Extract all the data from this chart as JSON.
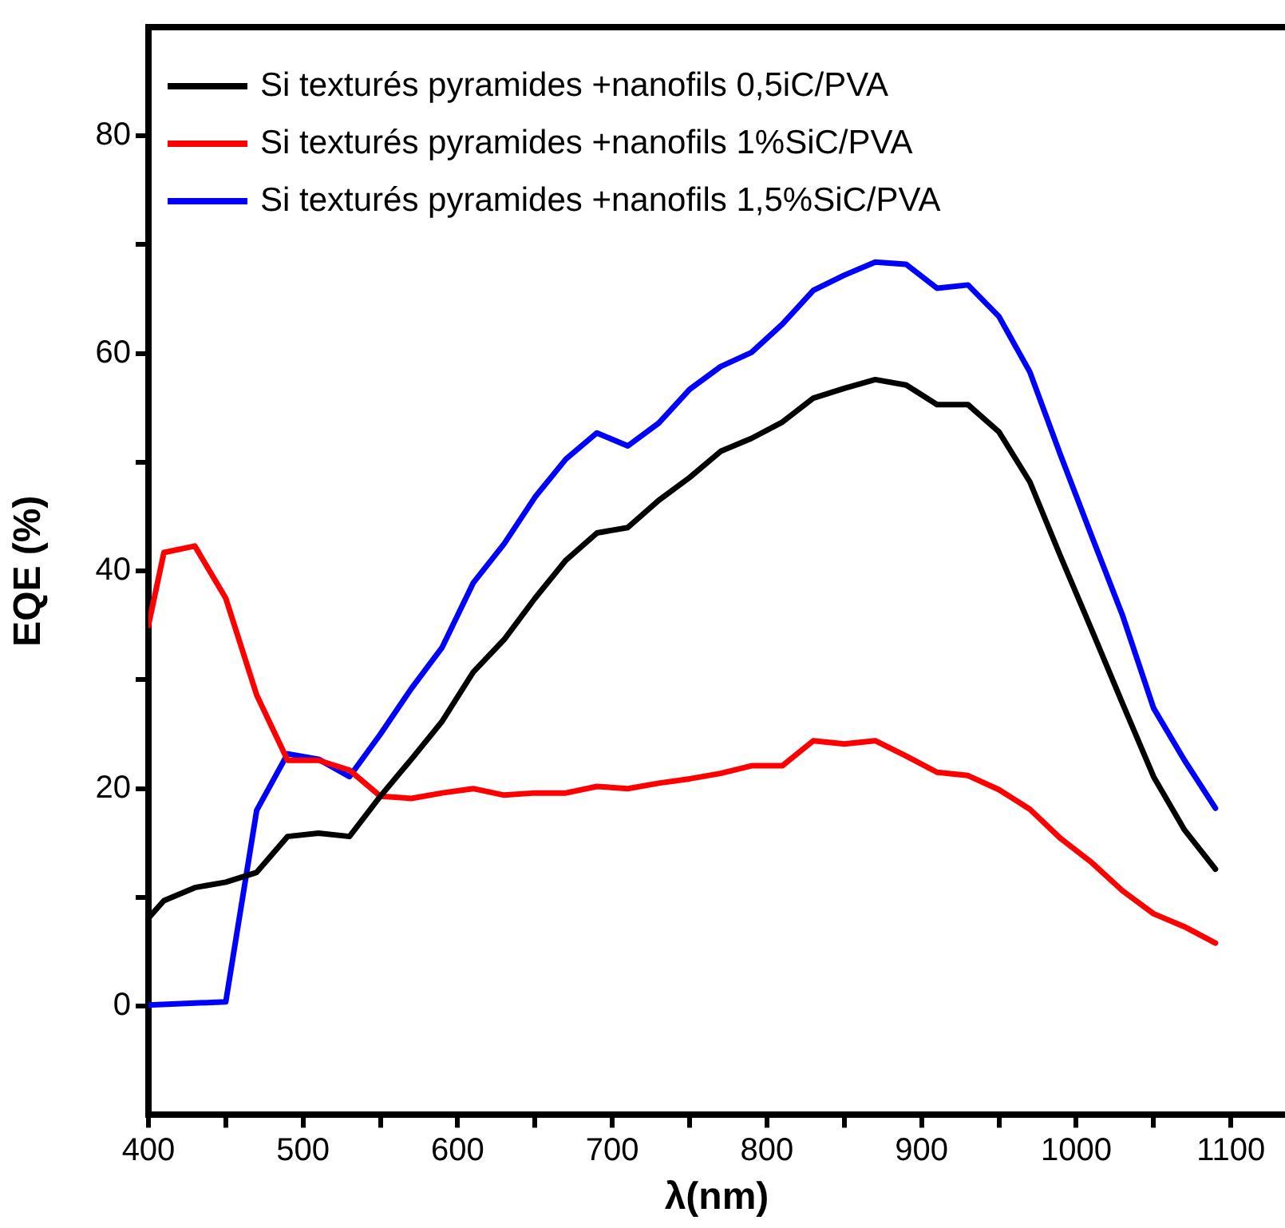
{
  "chart_data": {
    "type": "line",
    "xlabel": "λ(nm)",
    "ylabel": "EQE (%)",
    "xlim": [
      400,
      1135
    ],
    "ylim": [
      -10,
      90
    ],
    "xticks": [
      400,
      {
        "value": 450,
        "label": null
      },
      500,
      {
        "value": 550,
        "label": null
      },
      600,
      {
        "value": 650,
        "label": null
      },
      700,
      {
        "value": 750,
        "label": null
      },
      800,
      {
        "value": 850,
        "label": null
      },
      900,
      {
        "value": 950,
        "label": null
      },
      1000,
      {
        "value": 1050,
        "label": null
      },
      1100
    ],
    "yticks": [
      0,
      {
        "value": 10,
        "label": null
      },
      20,
      {
        "value": 30,
        "label": null
      },
      40,
      {
        "value": 50,
        "label": null
      },
      60,
      {
        "value": 70,
        "label": null
      },
      80
    ],
    "grid": false,
    "legend": "top left",
    "marker": "none",
    "line_style": "solid",
    "series": [
      {
        "name": "Si texturés pyramides +nanofils 0,5iC/PVA",
        "color": "#000000",
        "x": [
          400,
          410,
          430,
          450,
          470,
          490,
          510,
          530,
          550,
          570,
          590,
          610,
          630,
          650,
          670,
          690,
          710,
          730,
          750,
          770,
          790,
          810,
          830,
          850,
          870,
          890,
          910,
          930,
          950,
          970,
          990,
          1010,
          1030,
          1050,
          1070,
          1090
        ],
        "values": [
          8.1,
          9.7,
          10.9,
          11.4,
          12.3,
          15.6,
          15.9,
          15.6,
          19.3,
          22.7,
          26.2,
          30.7,
          33.7,
          37.5,
          41,
          43.5,
          44,
          46.5,
          48.6,
          51,
          52.2,
          53.7,
          55.9,
          56.8,
          57.6,
          57.1,
          55.3,
          55.3,
          52.8,
          48.2,
          41.3,
          34.6,
          27.8,
          21.1,
          16.2,
          12.6
        ]
      },
      {
        "name": "Si texturés pyramides +nanofils 1%SiC/PVA",
        "color": "#ff0000",
        "x": [
          400,
          410,
          430,
          450,
          470,
          490,
          510,
          530,
          550,
          570,
          590,
          610,
          630,
          650,
          670,
          690,
          710,
          730,
          750,
          770,
          790,
          810,
          830,
          850,
          870,
          890,
          910,
          930,
          950,
          970,
          990,
          1010,
          1030,
          1050,
          1070,
          1090
        ],
        "values": [
          35,
          41.7,
          42.3,
          37.5,
          28.6,
          22.6,
          22.6,
          21.7,
          19.3,
          19.1,
          19.6,
          20,
          19.4,
          19.6,
          19.6,
          20.2,
          20,
          20.5,
          20.9,
          21.4,
          22.1,
          22.1,
          24.4,
          24.1,
          24.4,
          23,
          21.5,
          21.2,
          19.9,
          18.1,
          15.4,
          13.2,
          10.6,
          8.5,
          7.3,
          5.8
        ]
      },
      {
        "name": "Si texturés pyramides +nanofils 1,5%SiC/PVA",
        "color": "#0000ff",
        "x": [
          400,
          450,
          470,
          490,
          510,
          530,
          550,
          570,
          590,
          610,
          630,
          650,
          670,
          690,
          710,
          730,
          750,
          770,
          790,
          810,
          830,
          850,
          870,
          890,
          910,
          930,
          950,
          970,
          990,
          1010,
          1030,
          1050,
          1070,
          1090
        ],
        "values": [
          0.1,
          0.4,
          18,
          23.2,
          22.7,
          21.1,
          25,
          29.2,
          33,
          38.9,
          42.5,
          46.8,
          50.3,
          52.7,
          51.5,
          53.6,
          56.7,
          58.8,
          60.1,
          62.7,
          65.8,
          67.2,
          68.4,
          68.2,
          66,
          66.3,
          63.4,
          58.3,
          50.6,
          43.2,
          35.9,
          27.4,
          22.6,
          18.2
        ]
      }
    ]
  }
}
